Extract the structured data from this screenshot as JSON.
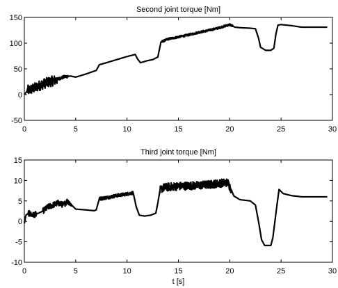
{
  "chart_data": [
    {
      "type": "line",
      "title": "Second joint torque [Nm]",
      "xlabel": "",
      "ylabel": "",
      "xlim": [
        0,
        30
      ],
      "ylim": [
        -50,
        150
      ],
      "xticks": [
        "0",
        "5",
        "10",
        "15",
        "20",
        "25",
        "30"
      ],
      "yticks": [
        "-50",
        "0",
        "50",
        "100",
        "150"
      ],
      "grid": false,
      "series": [
        {
          "color": "#000000",
          "x": [
            0,
            0.3,
            0.6,
            1.0,
            1.5,
            2.0,
            2.5,
            3.0,
            3.5,
            4.0,
            4.5,
            5.0,
            6.0,
            7.0,
            7.3,
            8.0,
            9.0,
            10.0,
            10.8,
            11.0,
            11.3,
            12.0,
            12.5,
            13.0,
            13.3,
            14.0,
            15.0,
            16.0,
            17.0,
            18.0,
            19.0,
            19.5,
            20.0,
            20.5,
            21.0,
            22.0,
            22.5,
            22.8,
            23.0,
            23.5,
            24.0,
            24.3,
            24.5,
            24.7,
            25.0,
            26.0,
            27.0,
            28.0,
            29.5
          ],
          "y": [
            0,
            8,
            10,
            13,
            18,
            22,
            25,
            28,
            32,
            35,
            36,
            34,
            40,
            47,
            58,
            62,
            68,
            74,
            78,
            70,
            62,
            66,
            68,
            73,
            102,
            108,
            112,
            116,
            121,
            125,
            130,
            133,
            136,
            131,
            130,
            129,
            128,
            110,
            92,
            86,
            86,
            90,
            118,
            135,
            136,
            134,
            131,
            131,
            131
          ],
          "noise": [
            {
              "x_start": 0.3,
              "x_end": 3.2,
              "amplitude": 10
            },
            {
              "x_start": 3.2,
              "x_end": 4.3,
              "amplitude": 3
            },
            {
              "x_start": 13.3,
              "x_end": 20.3,
              "amplitude": 2
            }
          ]
        }
      ]
    },
    {
      "type": "line",
      "title": "Third joint torque [Nm]",
      "xlabel": "t [s]",
      "ylabel": "",
      "xlim": [
        0,
        30
      ],
      "ylim": [
        -10,
        15
      ],
      "xticks": [
        "0",
        "5",
        "10",
        "15",
        "20",
        "25",
        "30"
      ],
      "yticks": [
        "-10",
        "-5",
        "0",
        "5",
        "10",
        "15"
      ],
      "grid": false,
      "series": [
        {
          "color": "#000000",
          "x": [
            0,
            0.15,
            0.4,
            0.8,
            1.2,
            1.8,
            2.3,
            2.8,
            3.3,
            3.8,
            4.2,
            4.6,
            5.0,
            5.5,
            6.0,
            6.8,
            7.0,
            7.3,
            8.0,
            9.0,
            10.0,
            10.6,
            10.9,
            11.2,
            11.7,
            12.3,
            12.8,
            13.0,
            13.2,
            13.5,
            14.0,
            15.0,
            16.0,
            17.0,
            18.0,
            19.0,
            19.8,
            20.1,
            20.4,
            21.0,
            22.0,
            22.5,
            22.8,
            23.1,
            23.4,
            24.0,
            24.2,
            24.4,
            24.6,
            24.8,
            25.2,
            26.0,
            27.0,
            28.0,
            29.5
          ],
          "y": [
            -0.5,
            1.5,
            2.0,
            1.5,
            1.8,
            2.5,
            3.5,
            4.0,
            4.5,
            4.0,
            5.0,
            4.0,
            3.0,
            2.9,
            2.8,
            2.6,
            2.8,
            5.5,
            5.8,
            6.3,
            6.7,
            7.0,
            3.5,
            1.5,
            1.3,
            1.5,
            2.0,
            4.5,
            7.5,
            8.2,
            8.4,
            8.6,
            8.7,
            8.8,
            9.0,
            9.3,
            9.5,
            8.0,
            6.2,
            5.3,
            5.0,
            4.0,
            0.0,
            -4.5,
            -5.9,
            -5.9,
            -4.0,
            0.0,
            4.0,
            7.8,
            6.8,
            6.3,
            6.0,
            6.0,
            6.0
          ],
          "noise": [
            {
              "x_start": 0.4,
              "x_end": 1.2,
              "amplitude": 0.7
            },
            {
              "x_start": 1.8,
              "x_end": 4.6,
              "amplitude": 0.7
            },
            {
              "x_start": 7.3,
              "x_end": 10.6,
              "amplitude": 0.4
            },
            {
              "x_start": 13.2,
              "x_end": 20.1,
              "amplitude": 1.0
            }
          ]
        }
      ]
    }
  ]
}
